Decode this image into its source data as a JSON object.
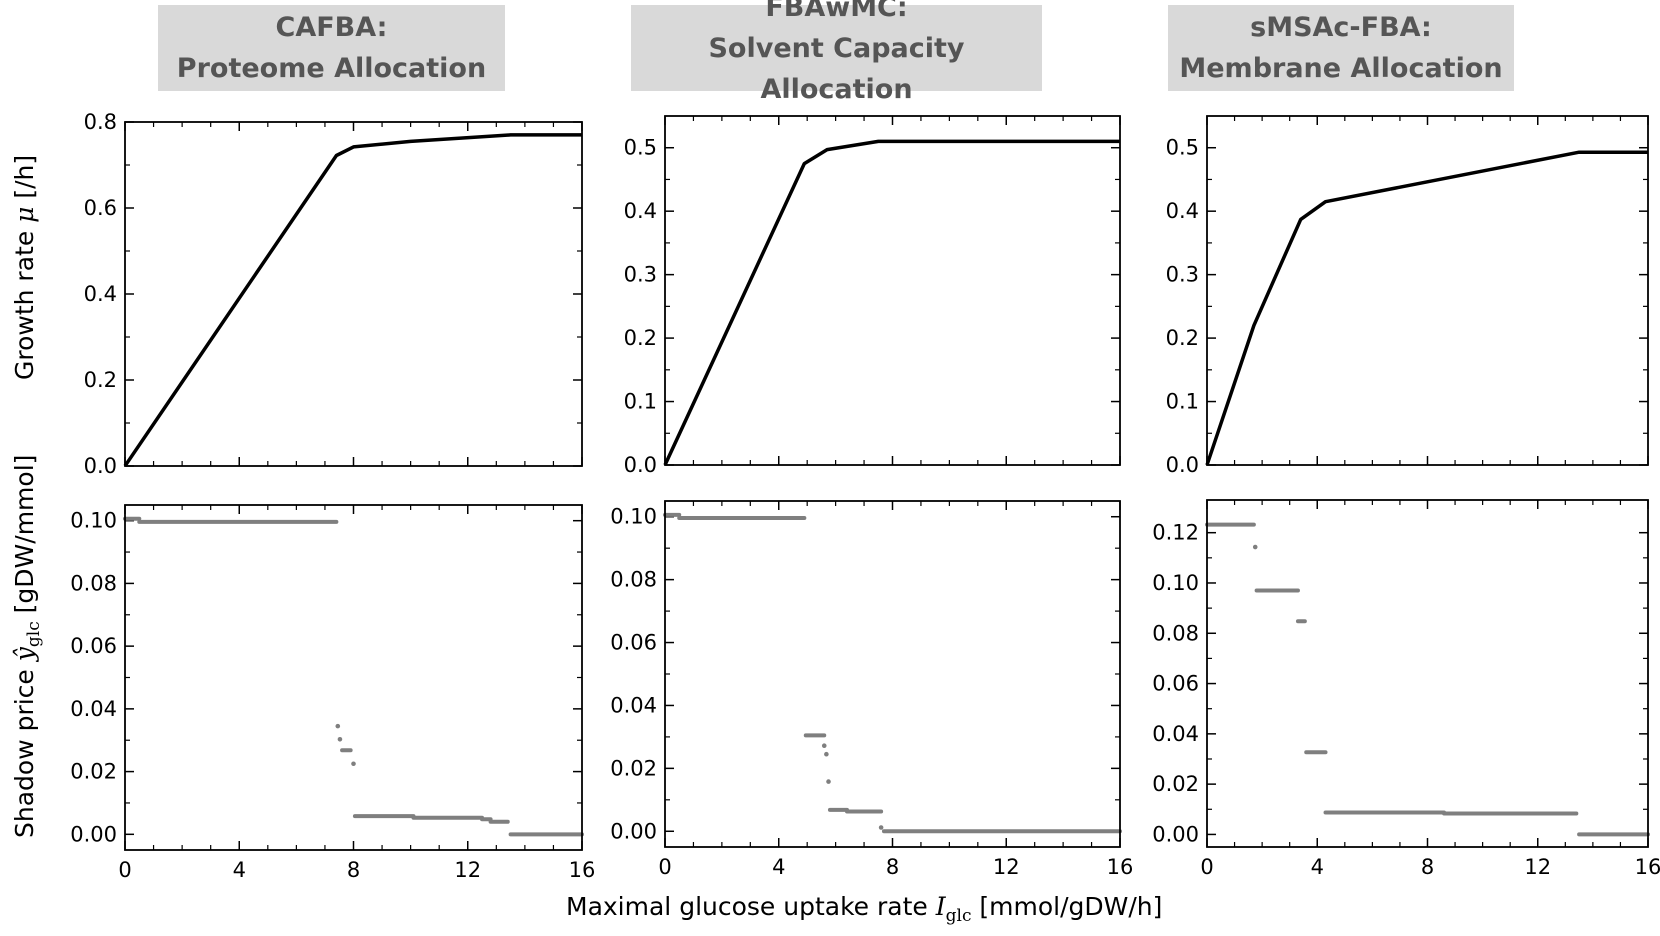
{
  "titles": [
    {
      "line1": "CAFBA:",
      "line2": "Proteome Allocation"
    },
    {
      "line1": "FBAwMC:",
      "line2": "Solvent Capacity Allocation"
    },
    {
      "line1": "sMSAc-FBA:",
      "line2": "Membrane Allocation"
    }
  ],
  "labels": {
    "growth_prefix": "Growth rate ",
    "growth_symbol": "μ",
    "growth_unit": " [/h]",
    "shadow_prefix": "Shadow price ",
    "shadow_symbol": "ŷ",
    "shadow_sub": "glc",
    "shadow_unit": " [gDW/mmol]",
    "x_prefix": "Maximal glucose uptake rate ",
    "x_symbol": "I",
    "x_sub": "glc",
    "x_unit": " [mmol/gDW/h]"
  },
  "colors": {
    "line": "#000000",
    "points": "#7f7f7f",
    "title_bg": "#d9d9d9",
    "title_text": "#555555"
  },
  "chart_data": [
    {
      "type": "line",
      "panel": "CAFBA growth rate",
      "xlabel": "Maximal glucose uptake rate I_glc [mmol/gDW/h]",
      "ylabel": "Growth rate μ [/h]",
      "xlim": [
        0,
        16
      ],
      "ylim": [
        0,
        0.8
      ],
      "xticks": [
        0,
        4,
        8,
        12,
        16
      ],
      "yticks": [
        0.0,
        0.2,
        0.4,
        0.6,
        0.8
      ],
      "ydec": 1,
      "x": [
        0,
        7.4,
        8.0,
        10.0,
        13.5,
        16
      ],
      "y": [
        0,
        0.722,
        0.742,
        0.755,
        0.77,
        0.77
      ]
    },
    {
      "type": "line",
      "panel": "FBAwMC growth rate",
      "xlim": [
        0,
        16
      ],
      "ylim": [
        0,
        0.55
      ],
      "xticks": [
        0,
        4,
        8,
        12,
        16
      ],
      "yticks": [
        0.0,
        0.1,
        0.2,
        0.3,
        0.4,
        0.5
      ],
      "ydec": 1,
      "x": [
        0,
        4.9,
        5.7,
        7.5,
        16
      ],
      "y": [
        0,
        0.475,
        0.497,
        0.51,
        0.51
      ]
    },
    {
      "type": "line",
      "panel": "sMSAc-FBA growth rate",
      "xlim": [
        0,
        16
      ],
      "ylim": [
        0,
        0.55
      ],
      "xticks": [
        0,
        4,
        8,
        12,
        16
      ],
      "yticks": [
        0.0,
        0.1,
        0.2,
        0.3,
        0.4,
        0.5
      ],
      "ydec": 1,
      "x": [
        0,
        1.7,
        3.4,
        4.3,
        13.5,
        16
      ],
      "y": [
        0,
        0.22,
        0.387,
        0.415,
        0.493,
        0.493
      ]
    },
    {
      "type": "scatter",
      "panel": "CAFBA shadow price",
      "xlabel": "Maximal glucose uptake rate I_glc [mmol/gDW/h]",
      "ylabel": "Shadow price ŷ_glc [gDW/mmol]",
      "xlim": [
        0,
        16
      ],
      "ylim": [
        -0.005,
        0.105
      ],
      "xticks": [
        0,
        4,
        8,
        12,
        16
      ],
      "yticks": [
        0.0,
        0.02,
        0.04,
        0.06,
        0.08,
        0.1
      ],
      "ydec": 2,
      "segments": [
        {
          "x0": 0.0,
          "x1": 0.5,
          "y": 0.1006
        },
        {
          "x0": 0.5,
          "x1": 7.4,
          "y": 0.0996
        },
        {
          "x0": 7.45,
          "x1": 7.45,
          "y": 0.0345
        },
        {
          "x0": 7.5,
          "x1": 7.55,
          "y": 0.0303
        },
        {
          "x0": 7.6,
          "x1": 7.9,
          "y": 0.0268
        },
        {
          "x0": 7.95,
          "x1": 8.05,
          "y": 0.0225
        },
        {
          "x0": 8.05,
          "x1": 10.1,
          "y": 0.0058
        },
        {
          "x0": 10.1,
          "x1": 12.5,
          "y": 0.0053
        },
        {
          "x0": 12.5,
          "x1": 12.8,
          "y": 0.0048
        },
        {
          "x0": 12.8,
          "x1": 13.4,
          "y": 0.004
        },
        {
          "x0": 13.5,
          "x1": 16.0,
          "y": 0.0
        }
      ]
    },
    {
      "type": "scatter",
      "panel": "FBAwMC shadow price",
      "xlim": [
        0,
        16
      ],
      "ylim": [
        -0.005,
        0.105
      ],
      "xticks": [
        0,
        4,
        8,
        12,
        16
      ],
      "yticks": [
        0.0,
        0.02,
        0.04,
        0.06,
        0.08,
        0.1
      ],
      "ydec": 2,
      "segments": [
        {
          "x0": 0.0,
          "x1": 0.5,
          "y": 0.1006
        },
        {
          "x0": 0.5,
          "x1": 4.9,
          "y": 0.0996
        },
        {
          "x0": 4.95,
          "x1": 5.6,
          "y": 0.0305
        },
        {
          "x0": 5.6,
          "x1": 5.6,
          "y": 0.0272
        },
        {
          "x0": 5.65,
          "x1": 5.7,
          "y": 0.0245
        },
        {
          "x0": 5.75,
          "x1": 5.75,
          "y": 0.0158
        },
        {
          "x0": 5.8,
          "x1": 6.4,
          "y": 0.0068
        },
        {
          "x0": 6.4,
          "x1": 7.6,
          "y": 0.0063
        },
        {
          "x0": 7.6,
          "x1": 7.6,
          "y": 0.0012
        },
        {
          "x0": 7.7,
          "x1": 16.0,
          "y": 0.0
        }
      ]
    },
    {
      "type": "scatter",
      "panel": "sMSAc-FBA shadow price",
      "xlim": [
        0,
        16
      ],
      "ylim": [
        -0.005,
        0.133
      ],
      "xticks": [
        0,
        4,
        8,
        12,
        16
      ],
      "yticks": [
        0.0,
        0.02,
        0.04,
        0.06,
        0.08,
        0.1,
        0.12
      ],
      "ydec": 2,
      "segments": [
        {
          "x0": 0.0,
          "x1": 1.7,
          "y": 0.1232
        },
        {
          "x0": 1.75,
          "x1": 1.75,
          "y": 0.1143
        },
        {
          "x0": 1.8,
          "x1": 3.3,
          "y": 0.097
        },
        {
          "x0": 3.3,
          "x1": 3.55,
          "y": 0.0848
        },
        {
          "x0": 3.6,
          "x1": 4.3,
          "y": 0.0327
        },
        {
          "x0": 4.3,
          "x1": 8.6,
          "y": 0.0087
        },
        {
          "x0": 8.6,
          "x1": 13.4,
          "y": 0.0083
        },
        {
          "x0": 13.5,
          "x1": 16.0,
          "y": 0.0
        }
      ]
    }
  ]
}
